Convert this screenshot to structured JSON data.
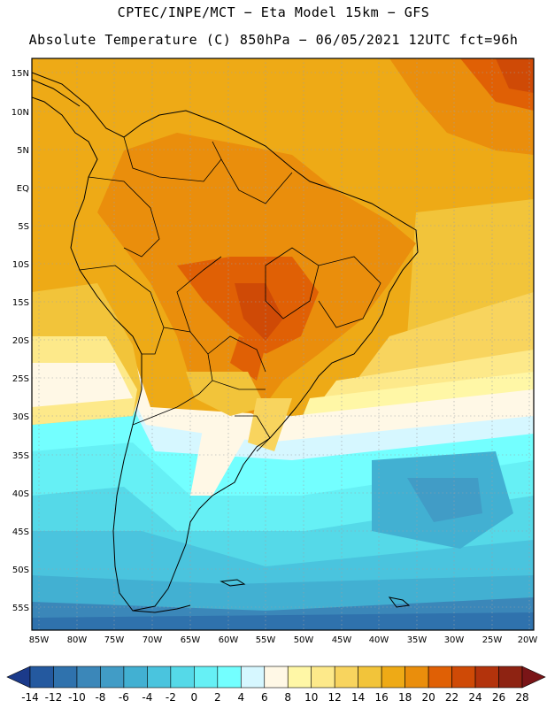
{
  "header": {
    "line1": "CPTEC/INPE/MCT −  Eta Model 15km − GFS",
    "line2": "Absolute Temperature (C) 850hPa − 06/05/2021 12UTC fct=96h"
  },
  "map": {
    "lat_labels": [
      "15N",
      "10N",
      "5N",
      "EQ",
      "5S",
      "10S",
      "15S",
      "20S",
      "25S",
      "30S",
      "35S",
      "40S",
      "45S",
      "50S",
      "55S"
    ],
    "lon_labels": [
      "85W",
      "80W",
      "75W",
      "70W",
      "65W",
      "60W",
      "55W",
      "50W",
      "45W",
      "40W",
      "35W",
      "30W",
      "25W",
      "20W"
    ]
  },
  "colorbar": {
    "levels": [
      "-14",
      "-12",
      "-10",
      "-8",
      "-6",
      "-4",
      "-2",
      "0",
      "2",
      "4",
      "6",
      "8",
      "10",
      "12",
      "14",
      "16",
      "18",
      "20",
      "22",
      "24",
      "26",
      "28"
    ],
    "colors": [
      "#1b3a8a",
      "#24599f",
      "#2f72ad",
      "#3b87b9",
      "#419cc6",
      "#42b0d2",
      "#4ac4de",
      "#55d9e8",
      "#66f0f5",
      "#73ffff",
      "#d6f7ff",
      "#fff8e6",
      "#fff7a6",
      "#fde98a",
      "#f8d45e",
      "#f2c43a",
      "#eeaa16",
      "#ea8e0c",
      "#e06005",
      "#cf4a06",
      "#b3330c",
      "#8e2312",
      "#7a1517"
    ]
  }
}
